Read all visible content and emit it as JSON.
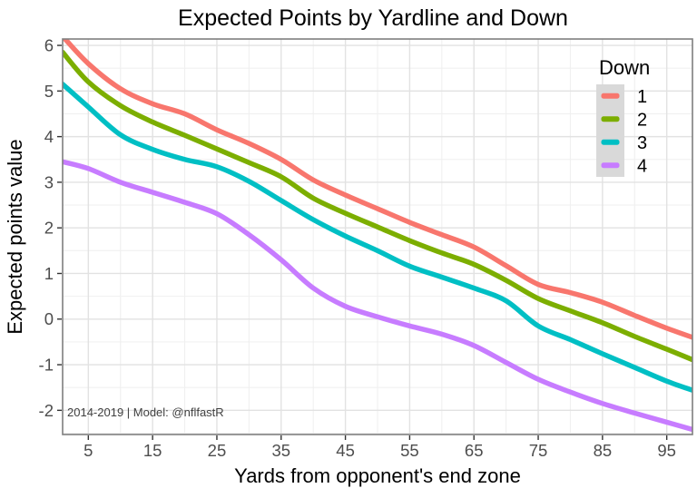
{
  "chart_data": {
    "type": "line",
    "title": "Expected Points by Yardline and Down",
    "xlabel": "Yards from opponent's end zone",
    "ylabel": "Expected points value",
    "annotation": "2014-2019 | Model: @nflfastR",
    "legend": {
      "title": "Down",
      "position": "top-right-inside",
      "key_background": "#D9D9D9",
      "entries": [
        {
          "label": "1",
          "color": "#F8766D"
        },
        {
          "label": "2",
          "color": "#7CAE00"
        },
        {
          "label": "3",
          "color": "#00BFC4"
        },
        {
          "label": "4",
          "color": "#C77CFF"
        }
      ]
    },
    "x": [
      1,
      5,
      10,
      15,
      20,
      25,
      30,
      35,
      40,
      45,
      50,
      55,
      60,
      65,
      70,
      75,
      80,
      85,
      90,
      95,
      99
    ],
    "series": [
      {
        "name": "1",
        "color": "#F8766D",
        "values": [
          6.2,
          5.6,
          5.05,
          4.72,
          4.5,
          4.15,
          3.85,
          3.5,
          3.05,
          2.72,
          2.42,
          2.12,
          1.85,
          1.58,
          1.17,
          0.76,
          0.58,
          0.37,
          0.08,
          -0.2,
          -0.4
        ]
      },
      {
        "name": "2",
        "color": "#7CAE00",
        "values": [
          5.85,
          5.2,
          4.68,
          4.32,
          4.03,
          3.73,
          3.43,
          3.12,
          2.65,
          2.32,
          2.02,
          1.72,
          1.45,
          1.2,
          0.85,
          0.45,
          0.18,
          -0.08,
          -0.38,
          -0.66,
          -0.89
        ]
      },
      {
        "name": "3",
        "color": "#00BFC4",
        "values": [
          5.15,
          4.65,
          4.04,
          3.72,
          3.5,
          3.34,
          3.02,
          2.6,
          2.18,
          1.82,
          1.5,
          1.16,
          0.92,
          0.68,
          0.4,
          -0.15,
          -0.45,
          -0.76,
          -1.06,
          -1.36,
          -1.56
        ]
      },
      {
        "name": "4",
        "color": "#C77CFF",
        "values": [
          3.45,
          3.3,
          3.0,
          2.78,
          2.56,
          2.31,
          1.85,
          1.3,
          0.68,
          0.28,
          0.05,
          -0.15,
          -0.33,
          -0.58,
          -0.95,
          -1.32,
          -1.6,
          -1.85,
          -2.06,
          -2.26,
          -2.42
        ]
      }
    ],
    "xlim": [
      1,
      99
    ],
    "ylim": [
      -2.53,
      6.14
    ],
    "x_ticks": [
      5,
      15,
      25,
      35,
      45,
      55,
      65,
      75,
      85,
      95
    ],
    "y_ticks": [
      6,
      5,
      4,
      3,
      2,
      1,
      0,
      -1,
      -2
    ],
    "x_minor_ticks": [
      10,
      20,
      30,
      40,
      50,
      60,
      70,
      80,
      90
    ],
    "y_minor_ticks": [
      5.5,
      4.5,
      3.5,
      2.5,
      1.5,
      0.5,
      -0.5,
      -1.5,
      -2.5
    ],
    "grid": true,
    "colors": {
      "background": "#FFFFFF",
      "panel_background": "#FFFFFF",
      "panel_border": "#7F7F7F",
      "grid_major": "#E2E2E2",
      "grid_minor": "#F0F0F0",
      "axis_text": "#4D4D4D",
      "tick_mark": "#333333",
      "title_text": "#000000",
      "annotation_text": "#404040"
    }
  }
}
